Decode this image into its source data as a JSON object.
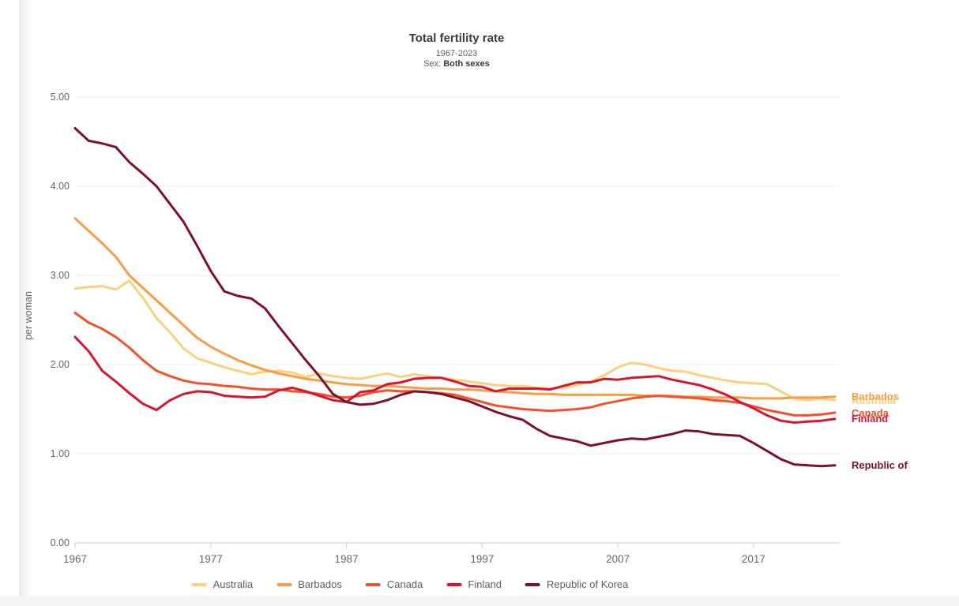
{
  "header": {
    "title": "Total fertility rate",
    "subtitle": "1967-2023",
    "sex_prefix": "Sex:",
    "sex_value": "Both sexes"
  },
  "chart_data": {
    "type": "line",
    "title": "Total fertility rate",
    "subtitle": "1967-2023",
    "sex": "Both sexes",
    "ylabel": "per woman",
    "ylim": [
      0,
      5
    ],
    "y_tick_labels": [
      "0.00",
      "1.00",
      "2.00",
      "3.00",
      "4.00",
      "5.00"
    ],
    "x_tick_labels": [
      "1967",
      "1977",
      "1987",
      "1997",
      "2007",
      "2017"
    ],
    "x_range": [
      1967,
      2023
    ],
    "grid": "horizontal",
    "legend_position": "bottom",
    "series": [
      {
        "name": "Australia",
        "end_label": "Australia",
        "color": "#FAD17C",
        "values": [
          2.85,
          2.87,
          2.88,
          2.84,
          2.94,
          2.75,
          2.52,
          2.36,
          2.18,
          2.07,
          2.02,
          1.97,
          1.93,
          1.89,
          1.92,
          1.93,
          1.91,
          1.86,
          1.9,
          1.87,
          1.85,
          1.84,
          1.87,
          1.9,
          1.86,
          1.89,
          1.87,
          1.85,
          1.83,
          1.81,
          1.79,
          1.77,
          1.76,
          1.76,
          1.74,
          1.73,
          1.74,
          1.77,
          1.81,
          1.88,
          1.97,
          2.02,
          2.0,
          1.96,
          1.93,
          1.92,
          1.88,
          1.85,
          1.82,
          1.8,
          1.79,
          1.78,
          1.7,
          1.62,
          1.6,
          1.62,
          1.6
        ]
      },
      {
        "name": "Barbados",
        "end_label": "Barbados",
        "color": "#F99D45",
        "values": [
          3.64,
          3.5,
          3.36,
          3.21,
          3.0,
          2.86,
          2.72,
          2.58,
          2.44,
          2.3,
          2.2,
          2.12,
          2.05,
          1.99,
          1.94,
          1.9,
          1.87,
          1.84,
          1.82,
          1.8,
          1.78,
          1.77,
          1.76,
          1.76,
          1.75,
          1.74,
          1.73,
          1.73,
          1.72,
          1.72,
          1.71,
          1.7,
          1.69,
          1.68,
          1.67,
          1.67,
          1.66,
          1.66,
          1.66,
          1.66,
          1.66,
          1.66,
          1.65,
          1.65,
          1.65,
          1.64,
          1.64,
          1.63,
          1.63,
          1.63,
          1.62,
          1.62,
          1.62,
          1.63,
          1.63,
          1.63,
          1.64
        ]
      },
      {
        "name": "Canada",
        "end_label": "Canada",
        "color": "#F4502B",
        "values": [
          2.58,
          2.47,
          2.4,
          2.31,
          2.19,
          2.05,
          1.93,
          1.87,
          1.82,
          1.79,
          1.78,
          1.76,
          1.75,
          1.73,
          1.72,
          1.72,
          1.7,
          1.69,
          1.67,
          1.64,
          1.63,
          1.65,
          1.69,
          1.71,
          1.7,
          1.7,
          1.69,
          1.68,
          1.66,
          1.62,
          1.58,
          1.54,
          1.52,
          1.5,
          1.49,
          1.48,
          1.49,
          1.5,
          1.52,
          1.56,
          1.59,
          1.62,
          1.64,
          1.65,
          1.64,
          1.63,
          1.62,
          1.6,
          1.59,
          1.57,
          1.53,
          1.49,
          1.46,
          1.43,
          1.43,
          1.44,
          1.46
        ]
      },
      {
        "name": "Finland",
        "end_label": "Finland",
        "color": "#D6152F",
        "values": [
          2.31,
          2.15,
          1.93,
          1.81,
          1.68,
          1.56,
          1.49,
          1.6,
          1.67,
          1.7,
          1.69,
          1.65,
          1.64,
          1.63,
          1.64,
          1.71,
          1.74,
          1.7,
          1.65,
          1.6,
          1.58,
          1.69,
          1.71,
          1.78,
          1.8,
          1.84,
          1.85,
          1.85,
          1.81,
          1.76,
          1.75,
          1.7,
          1.73,
          1.73,
          1.73,
          1.72,
          1.76,
          1.8,
          1.8,
          1.84,
          1.83,
          1.85,
          1.86,
          1.87,
          1.83,
          1.8,
          1.77,
          1.72,
          1.66,
          1.58,
          1.51,
          1.43,
          1.37,
          1.35,
          1.36,
          1.37,
          1.39
        ]
      },
      {
        "name": "Republic of Korea",
        "end_label": "Republic of",
        "color": "#7D1128",
        "values": [
          4.65,
          4.51,
          4.48,
          4.44,
          4.27,
          4.14,
          4.0,
          3.8,
          3.6,
          3.33,
          3.05,
          2.82,
          2.77,
          2.74,
          2.63,
          2.43,
          2.24,
          2.05,
          1.87,
          1.67,
          1.58,
          1.55,
          1.56,
          1.6,
          1.66,
          1.7,
          1.69,
          1.67,
          1.63,
          1.59,
          1.53,
          1.47,
          1.42,
          1.38,
          1.28,
          1.2,
          1.17,
          1.14,
          1.09,
          1.12,
          1.15,
          1.17,
          1.16,
          1.19,
          1.22,
          1.26,
          1.25,
          1.22,
          1.21,
          1.2,
          1.12,
          1.03,
          0.94,
          0.88,
          0.87,
          0.86,
          0.87
        ]
      }
    ],
    "colors": {
      "grid_line": "#efefef",
      "axis_line": "#c9c9c9",
      "tick_text": "#63676d",
      "legend_text": "#5e5e5e",
      "title_text": "#3a3a3a"
    }
  }
}
